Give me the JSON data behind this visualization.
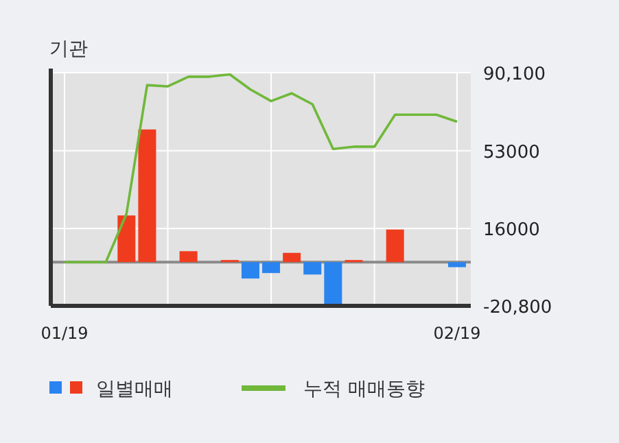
{
  "chart_data": {
    "type": "bar",
    "title": "기관",
    "categories": [
      "01/19",
      null,
      null,
      null,
      null,
      null,
      null,
      null,
      null,
      null,
      null,
      null,
      null,
      null,
      null,
      null,
      null,
      null,
      null,
      "02/19"
    ],
    "series": [
      {
        "name": "일별매매",
        "colors": [
          "#f03c1e",
          "#f03c1e",
          "#f03c1e",
          "#f03c1e",
          "#f03c1e",
          "#f03c1e",
          "#f03c1e",
          "#f03c1e",
          "#f03c1e",
          "#2a84f0",
          "#2a84f0",
          "#f03c1e",
          "#2a84f0",
          "#2a84f0",
          "#f03c1e",
          "#f03c1e",
          "#f03c1e",
          "#f03c1e",
          "#f03c1e",
          "#2a84f0"
        ],
        "values": [
          0,
          0,
          0,
          22200,
          63100,
          0,
          5200,
          0,
          1000,
          -7800,
          -5200,
          4400,
          -5900,
          -20200,
          1000,
          0,
          15500,
          0,
          0,
          -2400
        ]
      },
      {
        "name": "누적 매매동향",
        "type": "line",
        "color": "#70b83a",
        "values": [
          0,
          0,
          0,
          23000,
          84200,
          83600,
          88200,
          88200,
          89300,
          82100,
          76600,
          80300,
          75100,
          53800,
          54900,
          54900,
          70100,
          70100,
          70100,
          66800
        ]
      }
    ],
    "ylim": [
      -20800,
      90100
    ],
    "yticks": [
      {
        "value": 90100,
        "label": "90,100"
      },
      53000,
      16000,
      {
        "value": -20800,
        "label": "-20,800"
      }
    ],
    "grid": true,
    "legend": "bottom"
  }
}
